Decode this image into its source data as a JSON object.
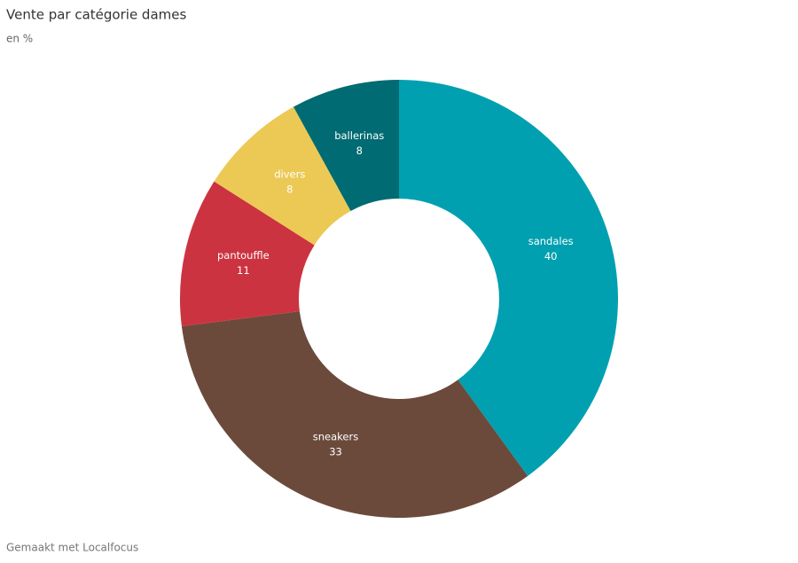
{
  "chart_data": {
    "type": "donut",
    "title": "Vente par catégorie dames",
    "subtitle": "en %",
    "credit": "Gemaakt met Localfocus",
    "categories": [
      "sandales",
      "sneakers",
      "pantouffle",
      "divers",
      "ballerinas"
    ],
    "values": [
      40,
      33,
      11,
      8,
      8
    ],
    "colors": [
      "#00a0b0",
      "#6b4a3c",
      "#cc3340",
      "#ecc954",
      "#006b72"
    ]
  }
}
